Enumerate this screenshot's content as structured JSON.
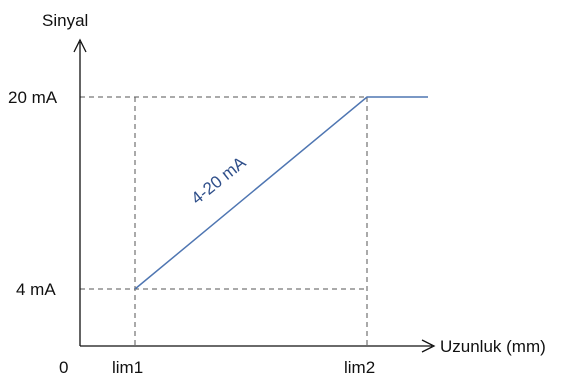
{
  "y_axis_label": "Sinyal",
  "x_axis_label": "Uzunluk (mm)",
  "origin_label": "0",
  "y_ticks": [
    {
      "id": "high",
      "label": "20 mA",
      "value": 20
    },
    {
      "id": "low",
      "label": "4 mA",
      "value": 4
    }
  ],
  "x_ticks": [
    {
      "id": "lim1",
      "label": "lim1"
    },
    {
      "id": "lim2",
      "label": "lim2"
    }
  ],
  "series_label": "4-20 mA",
  "colors": {
    "axis": "#111111",
    "line": "#4f76b2",
    "series_label": "#2f4f8a",
    "guide": "#555555"
  }
}
